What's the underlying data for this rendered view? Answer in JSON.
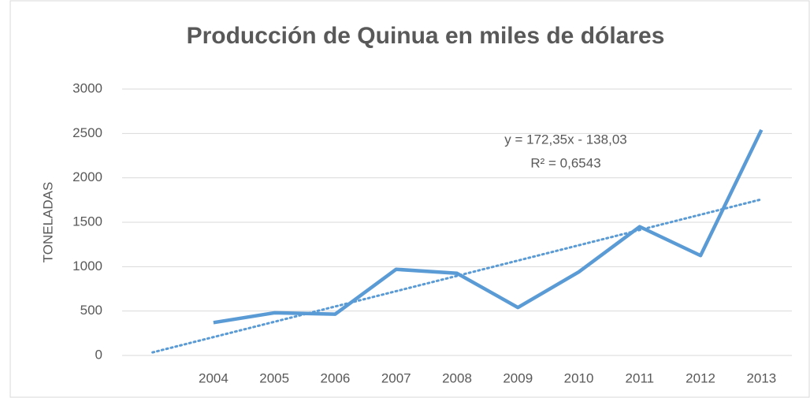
{
  "chart_data": {
    "type": "line",
    "title": "Producción de Quinua en miles de dólares",
    "y_label": "TONELADAS",
    "categories": [
      null,
      "2004",
      "2005",
      "2006",
      "2007",
      "2008",
      "2009",
      "2010",
      "2011",
      "2012",
      "2013"
    ],
    "series": [
      {
        "color": "#5b9bd5",
        "values": [
          null,
          370,
          480,
          465,
          970,
          925,
          540,
          940,
          1450,
          1125,
          2540
        ]
      }
    ],
    "trendline": {
      "color": "#5b9bd5",
      "values": [
        34.32,
        206.67,
        379.02,
        551.37,
        723.72,
        896.07,
        1068.42,
        1240.77,
        1413.12,
        1585.47,
        1757.82
      ]
    },
    "annotations": [
      "y = 172,35x - 138,03",
      "R² = 0,6543"
    ],
    "ylim": [
      0,
      3000
    ],
    "yticks": [
      0,
      500,
      1000,
      1500,
      2000,
      2500,
      3000
    ],
    "grid": true
  }
}
